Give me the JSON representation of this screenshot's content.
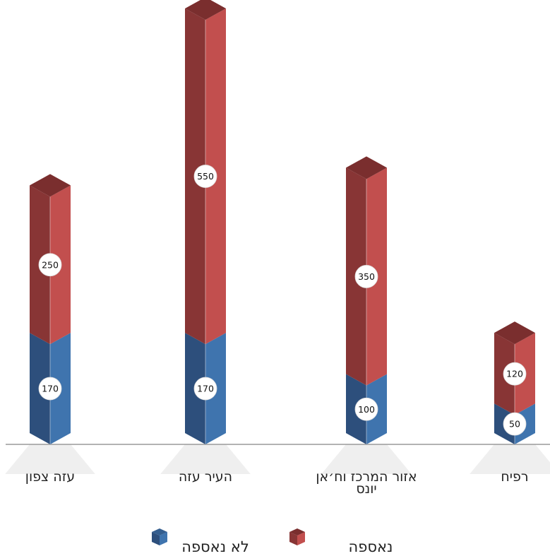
{
  "chart_data": {
    "type": "bar",
    "stacked": true,
    "style": "3d-column",
    "categories": [
      [
        "עזה צפון"
      ],
      [
        "העיר עזה"
      ],
      [
        "אזור המרכז וח׳אן",
        "יונס"
      ],
      [
        "רפיח"
      ]
    ],
    "series": [
      {
        "name": "לא נאספה",
        "values": [
          170,
          170,
          100,
          50
        ],
        "color": "#3d6fa3"
      },
      {
        "name": "נאספה",
        "values": [
          250,
          550,
          350,
          120
        ],
        "color": "#b84645"
      }
    ],
    "ylim": [
      0,
      720
    ],
    "grid": false,
    "legend": "bottom",
    "data_labels": true,
    "xlabel": "",
    "ylabel": ""
  },
  "colors": {
    "blue_left": "#2d4f7c",
    "blue_right": "#3f74ae",
    "blue_top": "#345e8f",
    "red_left": "#883535",
    "red_right": "#c24f4e",
    "red_top": "#7a2e2e",
    "baseline": "#9a9a9a",
    "shadow": "#e9e9e9"
  }
}
